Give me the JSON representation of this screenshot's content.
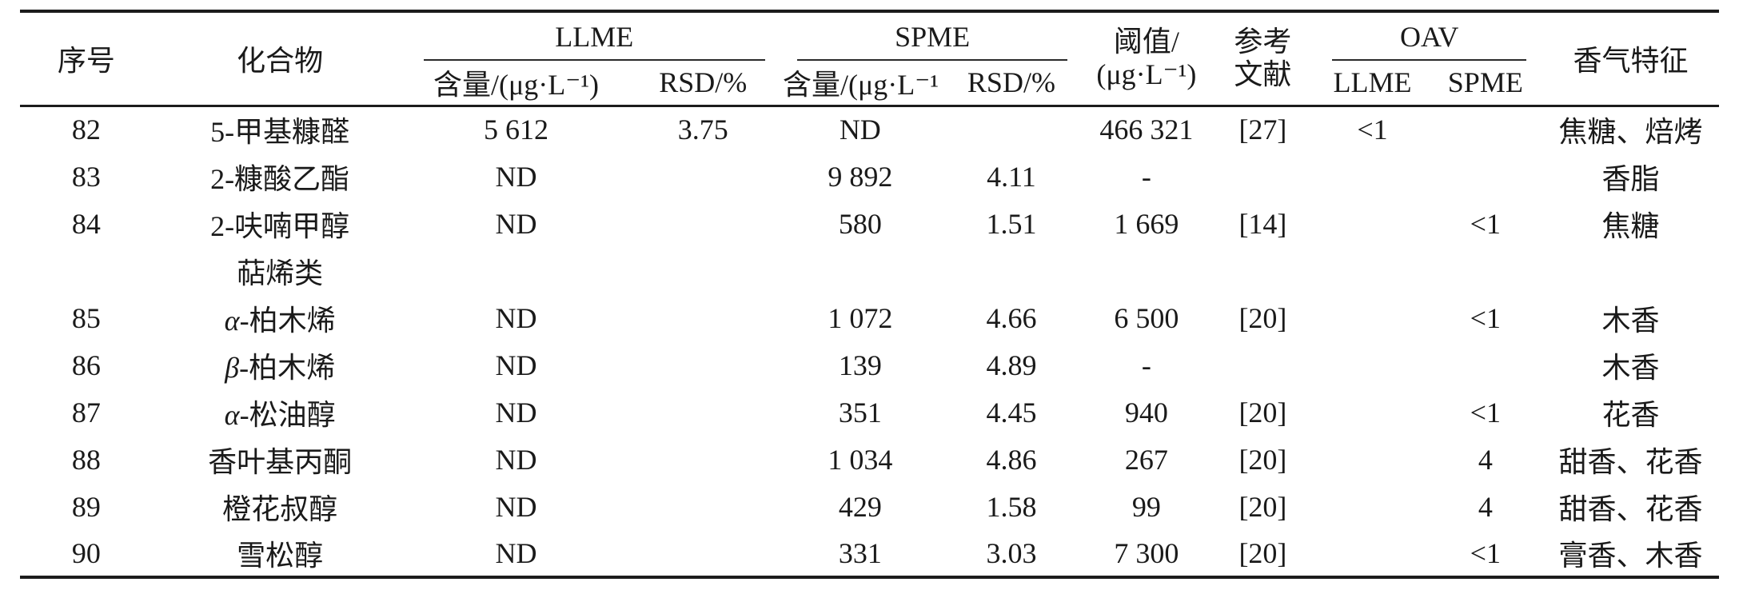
{
  "page": {
    "background": "#ffffff",
    "text_color": "#1a1a1a",
    "rule_color": "#1c1c1c"
  },
  "table": {
    "headers": {
      "index": "序号",
      "compound": "化合物",
      "threshold": "阈值/\n(μg·L⁻¹)",
      "reference": "参考\n文献",
      "aroma": "香气特征"
    },
    "groups": {
      "llme": "LLME",
      "spme": "SPME",
      "oav": "OAV"
    },
    "subheaders": {
      "llme_content": "含量/(μg·L⁻¹)",
      "llme_rsd": "RSD/%",
      "spme_content": "含量/(μg·L⁻¹)",
      "spme_rsd": "RSD/%",
      "oav_llme": "LLME",
      "oav_spme": "SPME"
    },
    "field_order": [
      "no",
      "compound",
      "llme_content",
      "llme_rsd",
      "spme_content",
      "spme_rsd",
      "threshold",
      "reference",
      "oav_llme",
      "oav_spme",
      "aroma"
    ],
    "rows": [
      {
        "no": "82",
        "compound": "5-甲基糠醛",
        "llme_content": "5 612",
        "llme_rsd": "3.75",
        "spme_content": "ND",
        "spme_rsd": "",
        "threshold": "466 321",
        "reference": "[27]",
        "oav_llme": "<1",
        "oav_spme": "",
        "aroma": "焦糖、焙烤",
        "section": false
      },
      {
        "no": "83",
        "compound": "2-糠酸乙酯",
        "llme_content": "ND",
        "llme_rsd": "",
        "spme_content": "9 892",
        "spme_rsd": "4.11",
        "threshold": "-",
        "reference": "",
        "oav_llme": "",
        "oav_spme": "",
        "aroma": "香脂",
        "section": false
      },
      {
        "no": "84",
        "compound": "2-呋喃甲醇",
        "llme_content": "ND",
        "llme_rsd": "",
        "spme_content": "580",
        "spme_rsd": "1.51",
        "threshold": "1 669",
        "reference": "[14]",
        "oav_llme": "",
        "oav_spme": "<1",
        "aroma": "焦糖",
        "section": false
      },
      {
        "no": "",
        "compound": "萜烯类",
        "llme_content": "",
        "llme_rsd": "",
        "spme_content": "",
        "spme_rsd": "",
        "threshold": "",
        "reference": "",
        "oav_llme": "",
        "oav_spme": "",
        "aroma": "",
        "section": true
      },
      {
        "no": "85",
        "compound": "α-柏木烯",
        "llme_content": "ND",
        "llme_rsd": "",
        "spme_content": "1 072",
        "spme_rsd": "4.66",
        "threshold": "6 500",
        "reference": "[20]",
        "oav_llme": "",
        "oav_spme": "<1",
        "aroma": "木香",
        "section": false
      },
      {
        "no": "86",
        "compound": "β-柏木烯",
        "llme_content": "ND",
        "llme_rsd": "",
        "spme_content": "139",
        "spme_rsd": "4.89",
        "threshold": "-",
        "reference": "",
        "oav_llme": "",
        "oav_spme": "",
        "aroma": "木香",
        "section": false
      },
      {
        "no": "87",
        "compound": "α-松油醇",
        "llme_content": "ND",
        "llme_rsd": "",
        "spme_content": "351",
        "spme_rsd": "4.45",
        "threshold": "940",
        "reference": "[20]",
        "oav_llme": "",
        "oav_spme": "<1",
        "aroma": "花香",
        "section": false
      },
      {
        "no": "88",
        "compound": "香叶基丙酮",
        "llme_content": "ND",
        "llme_rsd": "",
        "spme_content": "1 034",
        "spme_rsd": "4.86",
        "threshold": "267",
        "reference": "[20]",
        "oav_llme": "",
        "oav_spme": "4",
        "aroma": "甜香、花香",
        "section": false
      },
      {
        "no": "89",
        "compound": "橙花叔醇",
        "llme_content": "ND",
        "llme_rsd": "",
        "spme_content": "429",
        "spme_rsd": "1.58",
        "threshold": "99",
        "reference": "[20]",
        "oav_llme": "",
        "oav_spme": "4",
        "aroma": "甜香、花香",
        "section": false
      },
      {
        "no": "90",
        "compound": "雪松醇",
        "llme_content": "ND",
        "llme_rsd": "",
        "spme_content": "331",
        "spme_rsd": "3.03",
        "threshold": "7 300",
        "reference": "[20]",
        "oav_llme": "",
        "oav_spme": "<1",
        "aroma": "膏香、木香",
        "section": false
      }
    ]
  }
}
